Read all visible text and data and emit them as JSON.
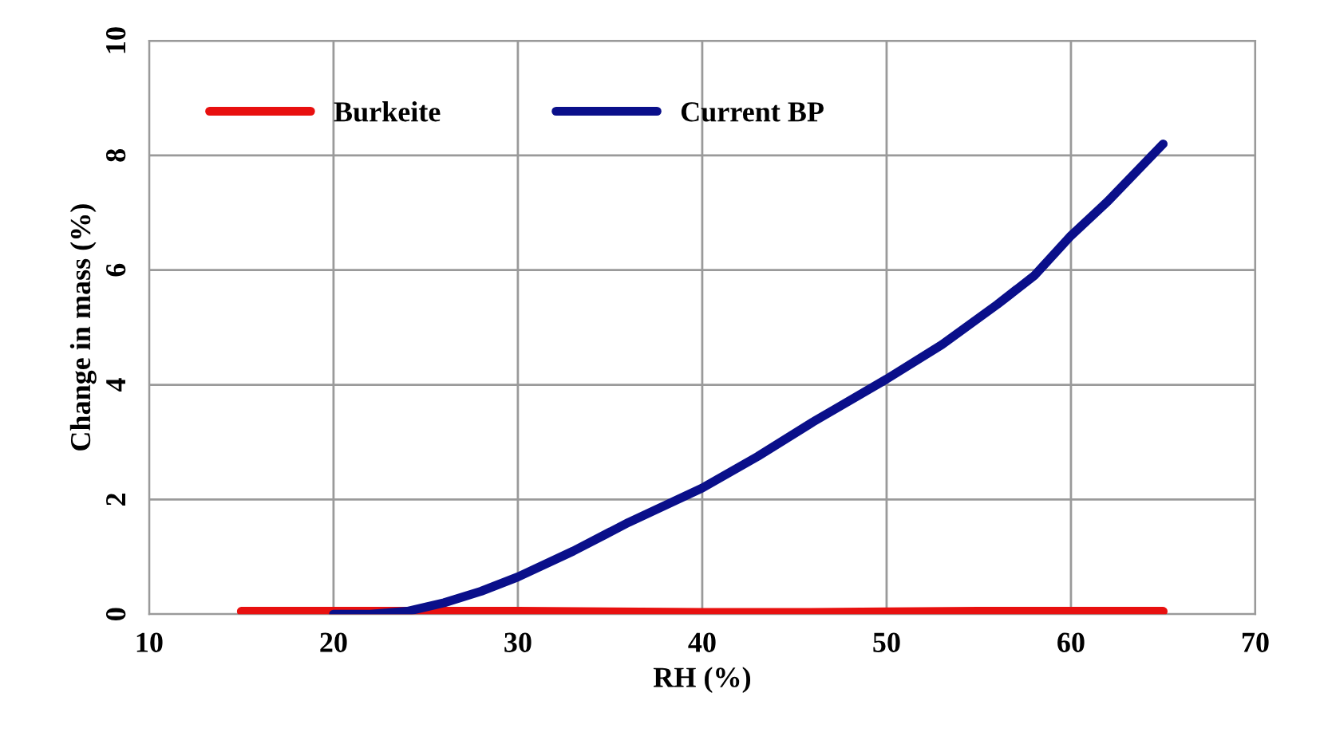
{
  "chart_data": {
    "type": "line",
    "xlabel": "RH (%)",
    "ylabel": "Change in mass (%)",
    "xlim": [
      10,
      70
    ],
    "xticks": [
      10,
      20,
      30,
      40,
      50,
      60,
      70
    ],
    "ylim": [
      0,
      10
    ],
    "yticks": [
      0,
      2,
      4,
      6,
      8,
      10
    ],
    "grid": true,
    "legend": "top left",
    "marker": "none",
    "line_style": "solid",
    "series": [
      {
        "name": "Burkeite",
        "color": "#e8100f",
        "x": [
          15,
          20,
          25,
          30,
          35,
          40,
          45,
          50,
          55,
          60,
          65
        ],
        "values": [
          0.05,
          0.05,
          0.05,
          0.05,
          0.04,
          0.03,
          0.03,
          0.04,
          0.05,
          0.05,
          0.05
        ]
      },
      {
        "name": "Current BP",
        "color": "#0a0f8a",
        "x": [
          20,
          22,
          24,
          26,
          28,
          30,
          33,
          36,
          40,
          43,
          46,
          50,
          53,
          56,
          58,
          60,
          62,
          65
        ],
        "values": [
          0,
          0,
          0.05,
          0.2,
          0.4,
          0.65,
          1.1,
          1.6,
          2.2,
          2.75,
          3.35,
          4.1,
          4.7,
          5.4,
          5.9,
          6.6,
          7.2,
          8.2
        ]
      }
    ]
  }
}
